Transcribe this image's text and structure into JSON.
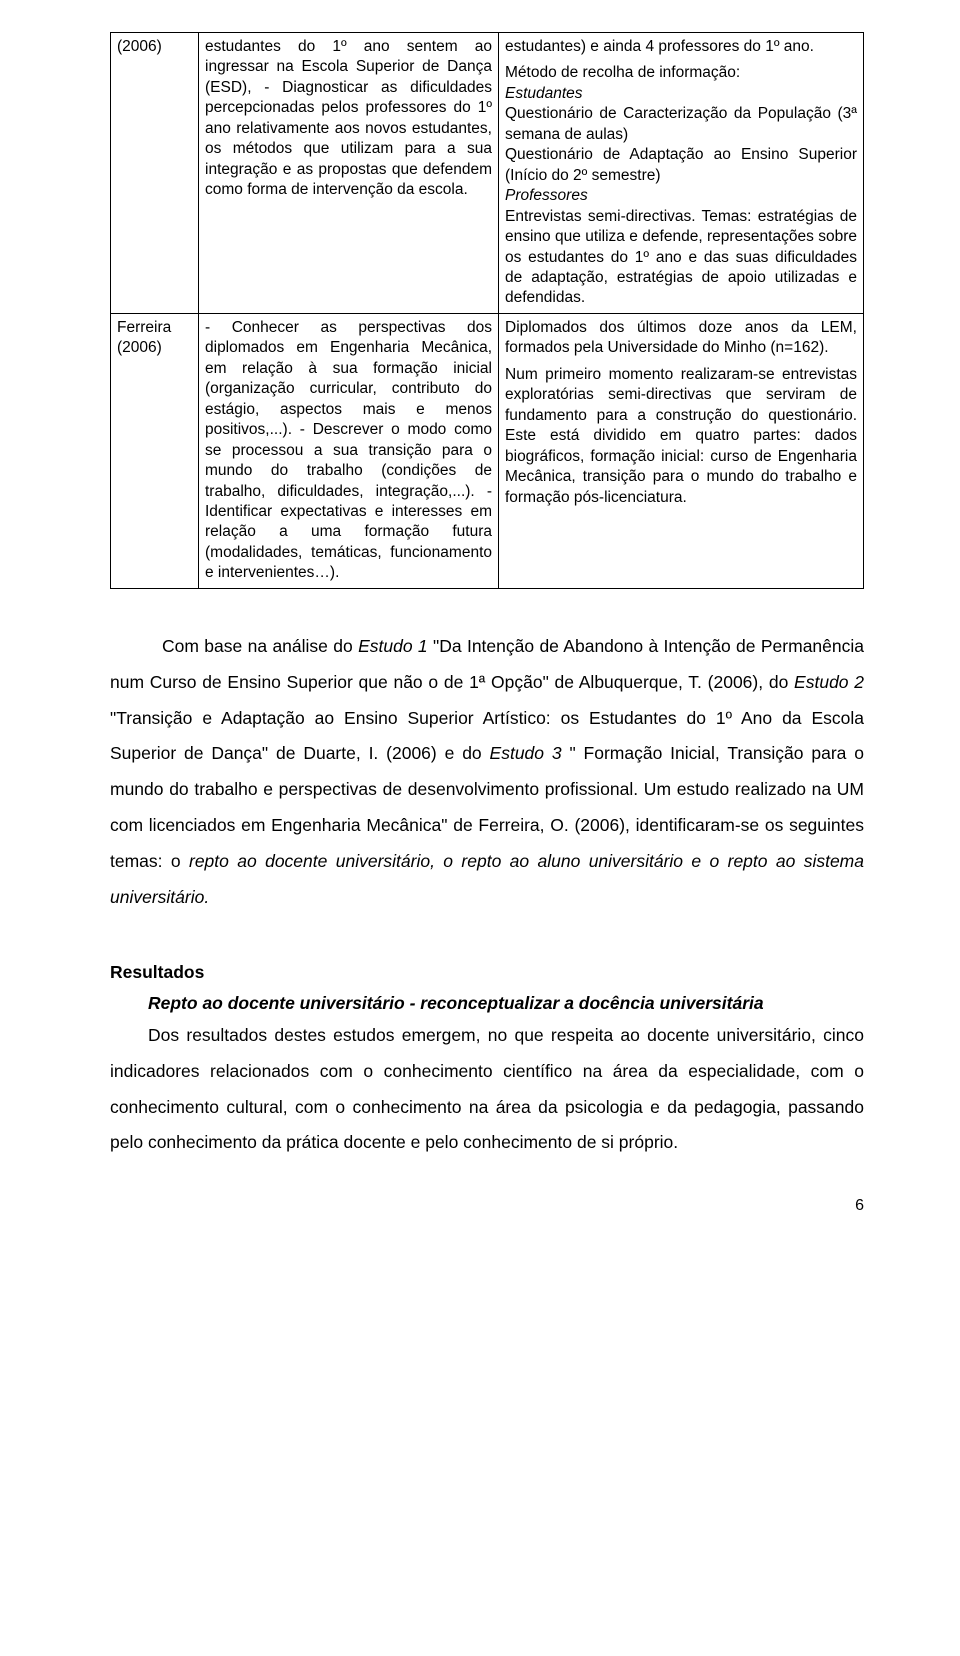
{
  "table": {
    "rows": [
      {
        "ref": "(2006)",
        "obj": "estudantes do 1º ano sentem ao ingressar na Escola Superior de Dança (ESD),\n- Diagnosticar as dificuldades percepcionadas pelos professores do 1º ano relativamente aos novos estudantes, os métodos que utilizam para a sua integração e as propostas que defendem como forma de intervenção da escola.",
        "res_parts": [
          {
            "text": "estudantes) e ainda 4 professores do 1º ano."
          },
          {
            "text": "Método de recolha de informação:",
            "mt": true
          },
          {
            "text": "Estudantes",
            "italic": true
          },
          {
            "text": "Questionário de Caracterização da População (3ª semana de aulas)"
          },
          {
            "text": "Questionário de Adaptação ao Ensino Superior (Início do 2º semestre)"
          },
          {
            "text": "Professores",
            "italic": true
          },
          {
            "text": "Entrevistas semi-directivas. Temas: estratégias de ensino que utiliza e defende, representações sobre os estudantes do 1º ano e das suas dificuldades de adaptação, estratégias de apoio utilizadas e defendidas."
          }
        ]
      },
      {
        "ref": "Ferreira (2006)",
        "obj": "- Conhecer as perspectivas dos diplomados em Engenharia Mecânica, em relação à sua formação inicial (organização curricular, contributo do estágio, aspectos mais e menos positivos,...).\n- Descrever o modo como se processou a sua transição para o mundo do trabalho (condições de trabalho, dificuldades, integração,...).\n- Identificar expectativas e interesses em relação a uma formação futura (modalidades, temáticas, funcionamento e intervenientes…).",
        "res_parts": [
          {
            "text": "Diplomados dos últimos doze anos da LEM, formados pela Universidade do Minho (n=162)."
          },
          {
            "text": "Num primeiro momento realizaram-se entrevistas exploratórias semi-directivas que serviram de fundamento para a construção do questionário. Este está dividido em quatro partes: dados biográficos, formação inicial: curso de Engenharia Mecânica, transição para o mundo do trabalho e formação pós-licenciatura.",
            "mt": true
          }
        ]
      }
    ]
  },
  "body": {
    "p1_segments": [
      {
        "text": "Com base na análise do "
      },
      {
        "text": "Estudo 1",
        "italic": true
      },
      {
        "text": " \"Da Intenção de Abandono à Intenção de Permanência num Curso de Ensino Superior que não o de 1ª Opção\" de Albuquerque, T. (2006), do "
      },
      {
        "text": "Estudo 2",
        "italic": true
      },
      {
        "text": " \"Transição e Adaptação ao Ensino Superior Artístico: os Estudantes do 1º Ano da Escola Superior de Dança\" de Duarte, I. (2006) e do "
      },
      {
        "text": "Estudo 3",
        "italic": true
      },
      {
        "text": " \" Formação Inicial, Transição para o mundo do trabalho e perspectivas de desenvolvimento profissional. Um estudo realizado na UM com licenciados em Engenharia Mecânica\" de Ferreira, O. (2006), identificaram-se os seguintes temas: o "
      },
      {
        "text": "repto ao docente universitário, o repto ao aluno universitário e o repto ao sistema universitário.",
        "italic": true
      }
    ]
  },
  "resultados_heading": "Resultados",
  "sub_heading": "Repto ao docente universitário - reconceptualizar a docência universitária",
  "p2": "Dos resultados destes estudos emergem, no que respeita ao docente universitário, cinco indicadores relacionados com o conhecimento científico na área da especialidade, com o conhecimento cultural, com o conhecimento na área da psicologia e da pedagogia, passando pelo conhecimento da prática docente e pelo conhecimento de si próprio.",
  "page_number": "6"
}
